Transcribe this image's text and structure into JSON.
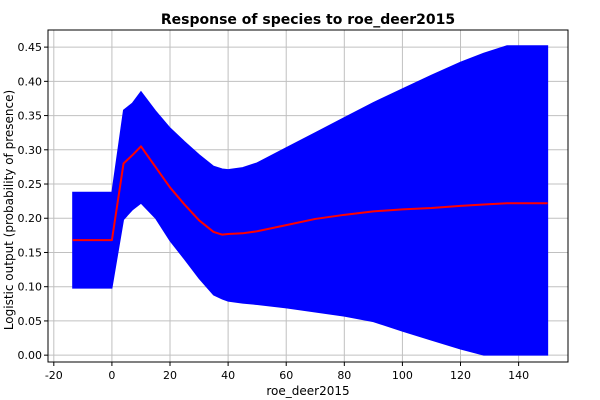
{
  "chart_data": {
    "type": "area",
    "title": "Response of species to roe_deer2015",
    "xlabel": "roe_deer2015",
    "ylabel": "Logistic output (probability of presence)",
    "xlim": [
      -22,
      157
    ],
    "ylim": [
      -0.01,
      0.475
    ],
    "xticks": [
      -20,
      0,
      20,
      40,
      60,
      80,
      100,
      120,
      140
    ],
    "yticks": [
      0.0,
      0.05,
      0.1,
      0.15,
      0.2,
      0.25,
      0.3,
      0.35,
      0.4,
      0.45
    ],
    "ytick_labels": [
      "0.00",
      "0.05",
      "0.10",
      "0.15",
      "0.20",
      "0.25",
      "0.30",
      "0.35",
      "0.40",
      "0.45"
    ],
    "grid": true,
    "colors": {
      "band": "#0000ff",
      "mean": "#ff0000"
    },
    "x": [
      -13.5,
      0,
      4,
      7,
      10,
      15,
      20,
      25,
      30,
      35,
      38,
      40,
      45,
      50,
      60,
      70,
      80,
      90,
      100,
      110,
      120,
      128,
      136,
      140,
      150
    ],
    "series": [
      {
        "role": "upper",
        "values": [
          0.238,
          0.238,
          0.358,
          0.368,
          0.385,
          0.357,
          0.332,
          0.312,
          0.293,
          0.276,
          0.272,
          0.271,
          0.274,
          0.281,
          0.303,
          0.325,
          0.347,
          0.369,
          0.389,
          0.409,
          0.428,
          0.441,
          0.452,
          0.452,
          0.452
        ]
      },
      {
        "role": "mean",
        "values": [
          0.168,
          0.168,
          0.28,
          0.292,
          0.305,
          0.275,
          0.245,
          0.22,
          0.197,
          0.18,
          0.176,
          0.177,
          0.178,
          0.181,
          0.19,
          0.199,
          0.205,
          0.21,
          0.213,
          0.215,
          0.218,
          0.22,
          0.222,
          0.222,
          0.222
        ]
      },
      {
        "role": "lower",
        "values": [
          0.098,
          0.098,
          0.198,
          0.212,
          0.222,
          0.2,
          0.167,
          0.14,
          0.112,
          0.088,
          0.082,
          0.079,
          0.076,
          0.074,
          0.069,
          0.063,
          0.057,
          0.049,
          0.035,
          0.022,
          0.009,
          0.0,
          0.0,
          0.0,
          0.0
        ]
      }
    ]
  }
}
